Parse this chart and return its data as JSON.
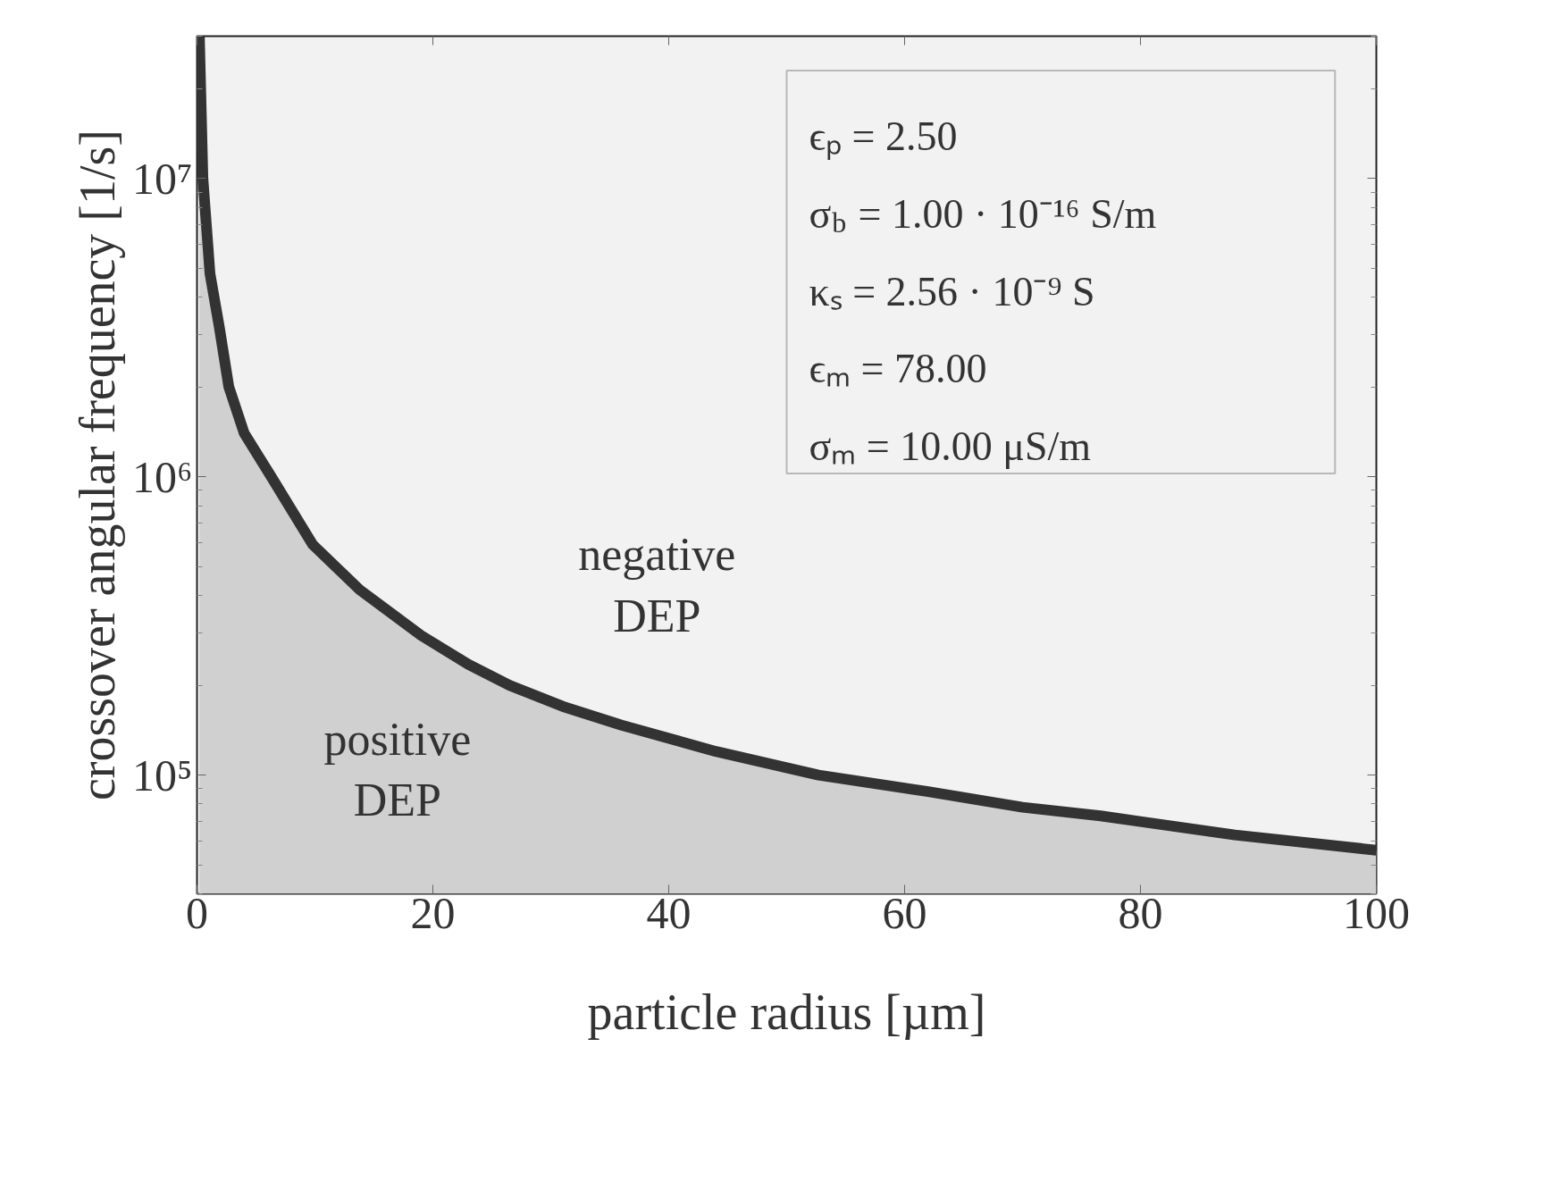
{
  "chart_data": {
    "type": "area",
    "xlabel": "particle radius [µm]",
    "ylabel": "crossover angular frequency [1/s]",
    "log": "y",
    "x": [
      0.2,
      0.5,
      1.1,
      1.9,
      2.7,
      4,
      6.3,
      9.8,
      13.8,
      19,
      23,
      26.5,
      31,
      36,
      44,
      52.7,
      62,
      70,
      76.6,
      88,
      100
    ],
    "series": [
      {
        "color": "#333333",
        "values": [
          30000000,
          10000000,
          4800000,
          3160000,
          2000000,
          1400000,
          1000000,
          593000,
          418000,
          294000,
          235000,
          200000,
          170000,
          147000,
          120000,
          100000,
          88000,
          78000,
          73000,
          63000,
          56000
        ]
      }
    ],
    "xlim": [
      0,
      100
    ],
    "ylim": [
      40000,
      30000000
    ],
    "xticks": [
      0,
      20,
      40,
      60,
      80,
      100
    ],
    "yticks": [
      {
        "value": 100000,
        "label": "10⁵"
      },
      {
        "value": 1000000,
        "label": "10⁶"
      },
      {
        "value": 10000000,
        "label": "10⁷"
      }
    ],
    "grid": false,
    "annotations": [
      "ϵₚ = 2.50",
      "σ$_{b}$ = 1.00 · 10⁻¹⁶ S/m",
      "κₛ = 2.56 · 10⁻⁹ S",
      "ϵₘ = 78.00",
      "σₘ = 10.00 μS/m",
      "negative\nDEP",
      "positive\nDEP"
    ]
  }
}
